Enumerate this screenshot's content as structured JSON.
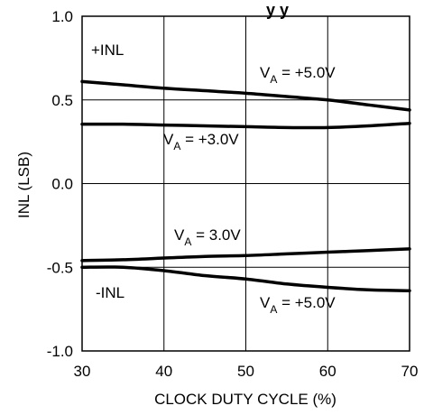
{
  "chart_data": {
    "type": "line",
    "title": "y y",
    "xlabel": "CLOCK DUTY CYCLE (%)",
    "ylabel": "INL (LSB)",
    "xlim": [
      30,
      70
    ],
    "ylim": [
      -1.0,
      1.0
    ],
    "x_ticks": [
      30,
      40,
      50,
      60,
      70
    ],
    "y_ticks": [
      1.0,
      0.5,
      0.0,
      -0.5,
      -1.0
    ],
    "x_tick_labels": [
      "30",
      "40",
      "50",
      "60",
      "70"
    ],
    "y_tick_labels": [
      "1.0",
      "0.5",
      "0.0",
      "-0.5",
      "-1.0"
    ],
    "grid": true,
    "x": [
      30,
      35,
      40,
      45,
      50,
      55,
      60,
      65,
      70
    ],
    "series": [
      {
        "name": "+INL, VA = +5.0V",
        "values": [
          0.61,
          0.59,
          0.57,
          0.555,
          0.54,
          0.52,
          0.5,
          0.47,
          0.44
        ]
      },
      {
        "name": "+INL, VA = +3.0V",
        "values": [
          0.355,
          0.355,
          0.35,
          0.345,
          0.34,
          0.335,
          0.335,
          0.345,
          0.36
        ]
      },
      {
        "name": "-INL, VA = 3.0V",
        "values": [
          -0.46,
          -0.455,
          -0.445,
          -0.435,
          -0.43,
          -0.42,
          -0.41,
          -0.4,
          -0.39
        ]
      },
      {
        "name": "-INL, VA = +5.0V",
        "values": [
          -0.5,
          -0.5,
          -0.52,
          -0.55,
          -0.57,
          -0.6,
          -0.62,
          -0.635,
          -0.64
        ]
      }
    ],
    "annotations": [
      {
        "id": "plus_inl",
        "text": "+INL"
      },
      {
        "id": "minus_inl",
        "text": "-INL"
      },
      {
        "id": "va5_top",
        "main": "V",
        "sub": "A",
        "rest": " = +5.0V"
      },
      {
        "id": "va3_top",
        "main": "V",
        "sub": "A",
        "rest": " = +3.0V"
      },
      {
        "id": "va3_bottom",
        "main": "V",
        "sub": "A",
        "rest": " = 3.0V"
      },
      {
        "id": "va5_bottom",
        "main": "V",
        "sub": "A",
        "rest": " = +5.0V"
      }
    ],
    "colors": {
      "line": "#000000",
      "grid": "#000000",
      "background": "#ffffff"
    }
  }
}
